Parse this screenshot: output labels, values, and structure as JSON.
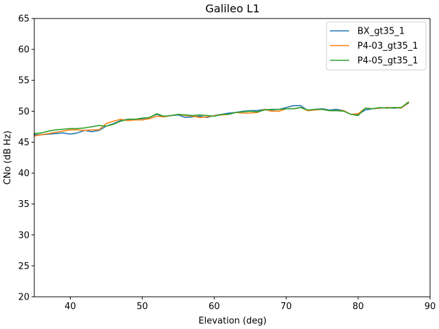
{
  "chart_data": {
    "type": "line",
    "title": "Galileo L1",
    "xlabel": "Elevation (deg)",
    "ylabel": "CNo (dB Hz)",
    "xlim": [
      35,
      90
    ],
    "ylim": [
      20,
      65
    ],
    "xticks": [
      40,
      50,
      60,
      70,
      80,
      90
    ],
    "yticks": [
      20,
      25,
      30,
      35,
      40,
      45,
      50,
      55,
      60,
      65
    ],
    "grid": false,
    "legend_position": "top-right",
    "x": [
      35,
      36,
      37,
      38,
      39,
      40,
      41,
      42,
      43,
      44,
      45,
      46,
      47,
      48,
      49,
      50,
      51,
      52,
      53,
      54,
      55,
      56,
      57,
      58,
      59,
      60,
      61,
      62,
      63,
      64,
      65,
      66,
      67,
      68,
      69,
      70,
      71,
      72,
      73,
      74,
      75,
      76,
      77,
      78,
      79,
      80,
      81,
      82,
      83,
      84,
      85,
      86,
      87
    ],
    "series": [
      {
        "name": "BX_gt35_1",
        "color": "#1f77b4",
        "values": [
          46.2,
          46.2,
          46.3,
          46.4,
          46.5,
          46.3,
          46.5,
          46.9,
          46.7,
          46.9,
          47.6,
          48.0,
          48.5,
          48.7,
          48.7,
          48.8,
          49.0,
          49.5,
          49.1,
          49.3,
          49.4,
          49.0,
          49.1,
          49.2,
          49.0,
          49.3,
          49.5,
          49.7,
          49.8,
          50.0,
          50.1,
          50.1,
          50.3,
          50.2,
          50.3,
          50.6,
          50.9,
          50.9,
          50.1,
          50.3,
          50.4,
          50.2,
          50.3,
          50.1,
          49.5,
          49.5,
          50.2,
          50.4,
          50.5,
          50.6,
          50.5,
          50.6,
          51.3
        ]
      },
      {
        "name": "P4-03_gt35_1",
        "color": "#ff7f0e",
        "values": [
          46.0,
          46.2,
          46.4,
          46.6,
          46.8,
          47.0,
          47.0,
          46.9,
          47.0,
          47.0,
          48.0,
          48.4,
          48.7,
          48.5,
          48.6,
          48.6,
          48.8,
          49.2,
          49.1,
          49.3,
          49.5,
          49.3,
          49.2,
          49.0,
          49.1,
          49.3,
          49.4,
          49.5,
          49.8,
          49.7,
          49.7,
          49.8,
          50.3,
          50.0,
          50.0,
          50.4,
          50.4,
          50.6,
          50.1,
          50.2,
          50.3,
          50.1,
          50.1,
          50.1,
          49.5,
          49.6,
          50.5,
          50.4,
          50.5,
          50.6,
          50.6,
          50.5,
          51.4
        ]
      },
      {
        "name": "P4-05_gt35_1",
        "color": "#2ca02c",
        "values": [
          46.4,
          46.5,
          46.8,
          47.0,
          47.1,
          47.2,
          47.2,
          47.3,
          47.5,
          47.7,
          47.6,
          47.9,
          48.4,
          48.7,
          48.7,
          48.9,
          49.0,
          49.6,
          49.2,
          49.3,
          49.5,
          49.4,
          49.3,
          49.4,
          49.3,
          49.2,
          49.5,
          49.5,
          49.8,
          49.9,
          50.0,
          49.9,
          50.2,
          50.3,
          50.3,
          50.4,
          50.4,
          50.6,
          50.2,
          50.3,
          50.3,
          50.1,
          50.1,
          50.0,
          49.5,
          49.3,
          50.5,
          50.4,
          50.6,
          50.5,
          50.6,
          50.6,
          51.5
        ]
      }
    ]
  }
}
